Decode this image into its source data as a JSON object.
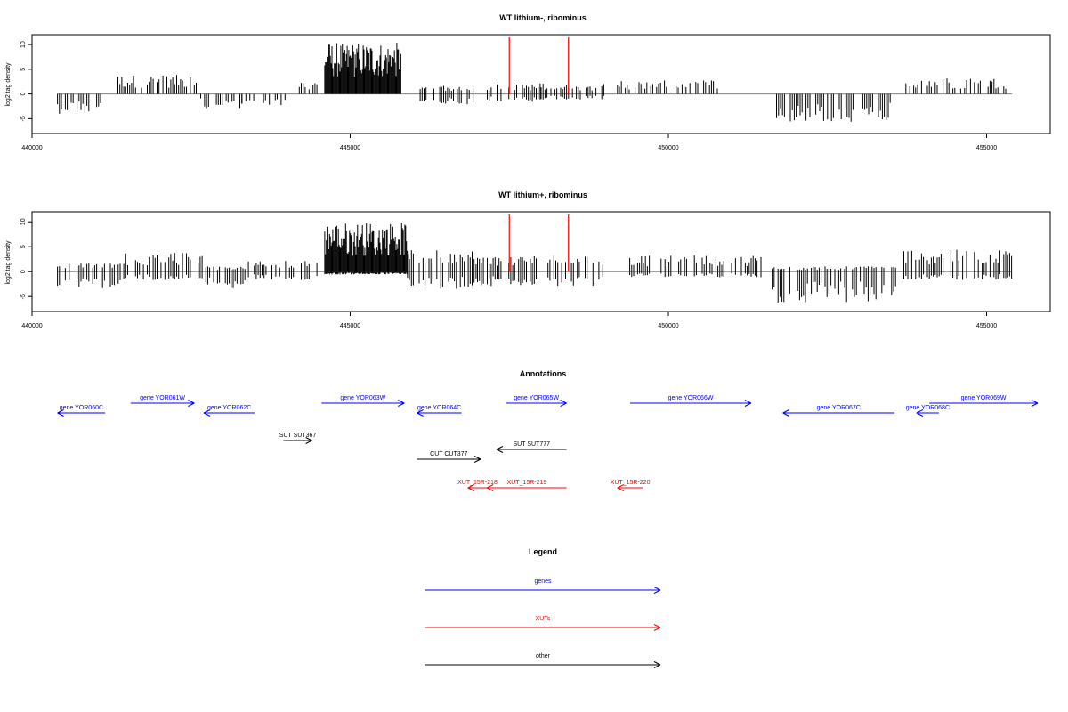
{
  "colors": {
    "gene": "#0000ff",
    "xut": "#ff0000",
    "other": "#000000",
    "marker": "#ff0000",
    "signal": "#000000",
    "baseline": "#808080"
  },
  "chart_data": [
    {
      "type": "bar",
      "title": "WT lithium-, ribominus",
      "ylabel": "log2 tag density",
      "xlim": [
        440000,
        456000
      ],
      "ylim": [
        -8,
        12
      ],
      "x_ticks": [
        440000,
        445000,
        450000,
        455000
      ],
      "y_ticks": [
        -5,
        0,
        5,
        10
      ],
      "markers": [
        447500,
        448430
      ],
      "segments": [
        {
          "start": 440400,
          "end": 441100,
          "pos": 0,
          "neg": 3.5
        },
        {
          "start": 441350,
          "end": 442600,
          "pos": 3.5,
          "neg": 0
        },
        {
          "start": 442650,
          "end": 443300,
          "pos": 0,
          "neg": 2.5
        },
        {
          "start": 443300,
          "end": 444000,
          "pos": 0,
          "neg": 2
        },
        {
          "start": 444200,
          "end": 444500,
          "pos": 2.5,
          "neg": 0
        },
        {
          "start": 444600,
          "end": 445800,
          "pos": 9.5,
          "neg": 0
        },
        {
          "start": 446100,
          "end": 447000,
          "pos": 1.5,
          "neg": 2
        },
        {
          "start": 447000,
          "end": 448000,
          "pos": 2,
          "neg": 1.5
        },
        {
          "start": 448000,
          "end": 449000,
          "pos": 2,
          "neg": 1
        },
        {
          "start": 449200,
          "end": 450800,
          "pos": 2.5,
          "neg": 0
        },
        {
          "start": 451700,
          "end": 453500,
          "pos": 0,
          "neg": 5
        },
        {
          "start": 453700,
          "end": 455400,
          "pos": 3,
          "neg": 0
        }
      ]
    },
    {
      "type": "bar",
      "title": "WT lithium+, ribominus",
      "ylabel": "log2 tag density",
      "xlim": [
        440000,
        456000
      ],
      "ylim": [
        -8,
        12
      ],
      "x_ticks": [
        440000,
        445000,
        450000,
        455000
      ],
      "y_ticks": [
        -5,
        0,
        5,
        10
      ],
      "markers": [
        447500,
        448430
      ],
      "segments": [
        {
          "start": 440400,
          "end": 441400,
          "pos": 1.5,
          "neg": 3
        },
        {
          "start": 441350,
          "end": 442700,
          "pos": 3.5,
          "neg": 1.5
        },
        {
          "start": 442700,
          "end": 443400,
          "pos": 1,
          "neg": 3
        },
        {
          "start": 443400,
          "end": 444500,
          "pos": 2,
          "neg": 1.5
        },
        {
          "start": 444600,
          "end": 445900,
          "pos": 9,
          "neg": 0.5
        },
        {
          "start": 445900,
          "end": 447000,
          "pos": 4,
          "neg": 3
        },
        {
          "start": 447000,
          "end": 449000,
          "pos": 3,
          "neg": 2.5
        },
        {
          "start": 449300,
          "end": 451500,
          "pos": 3,
          "neg": 1
        },
        {
          "start": 451600,
          "end": 453600,
          "pos": 1,
          "neg": 5.5
        },
        {
          "start": 453700,
          "end": 455400,
          "pos": 4,
          "neg": 1.5
        }
      ]
    }
  ],
  "annotations": {
    "title": "Annotations",
    "xlim": [
      440000,
      456000
    ],
    "features": [
      {
        "label": "gene YOR060C",
        "start": 440400,
        "end": 441150,
        "strand": "-",
        "type": "gene",
        "track": 2
      },
      {
        "label": "gene YOR061W",
        "start": 441550,
        "end": 442550,
        "strand": "+",
        "type": "gene",
        "track": 1
      },
      {
        "label": "gene YOR062C",
        "start": 442700,
        "end": 443500,
        "strand": "-",
        "type": "gene",
        "track": 2
      },
      {
        "label": "gene YOR063W",
        "start": 444550,
        "end": 445850,
        "strand": "+",
        "type": "gene",
        "track": 1
      },
      {
        "label": "gene YOR064C",
        "start": 446050,
        "end": 446750,
        "strand": "-",
        "type": "gene",
        "track": 2
      },
      {
        "label": "gene YOR065W",
        "start": 447450,
        "end": 448400,
        "strand": "+",
        "type": "gene",
        "track": 1
      },
      {
        "label": "gene YOR066W",
        "start": 449400,
        "end": 451300,
        "strand": "+",
        "type": "gene",
        "track": 1
      },
      {
        "label": "gene YOR067C",
        "start": 451800,
        "end": 453550,
        "strand": "-",
        "type": "gene",
        "track": 2
      },
      {
        "label": "gene YOR068C",
        "start": 453900,
        "end": 454250,
        "strand": "-",
        "type": "gene",
        "track": 2
      },
      {
        "label": "gene YOR069W",
        "start": 454100,
        "end": 456200,
        "strand": "+",
        "type": "gene",
        "track": 1
      },
      {
        "label": "SUT SUT367",
        "start": 443950,
        "end": 444400,
        "strand": "+",
        "type": "other",
        "track": 3
      },
      {
        "label": "SUT SUT777",
        "start": 447300,
        "end": 448400,
        "strand": "-",
        "type": "other",
        "track": 4
      },
      {
        "label": "CUT CUT377",
        "start": 446050,
        "end": 447050,
        "strand": "+",
        "type": "other",
        "track": 5
      },
      {
        "label": "XUT_15R-218",
        "start": 446850,
        "end": 447150,
        "strand": "-",
        "type": "xut",
        "track": 6
      },
      {
        "label": "XUT_15R-219",
        "start": 447150,
        "end": 448400,
        "strand": "-",
        "type": "xut",
        "track": 6
      },
      {
        "label": "XUT_15R-220",
        "start": 449200,
        "end": 449600,
        "strand": "-",
        "type": "xut",
        "track": 6
      }
    ]
  },
  "legend": {
    "title": "Legend",
    "items": [
      {
        "label": "genes",
        "type": "gene"
      },
      {
        "label": "XUTs",
        "type": "xut"
      },
      {
        "label": "other",
        "type": "other"
      }
    ]
  }
}
